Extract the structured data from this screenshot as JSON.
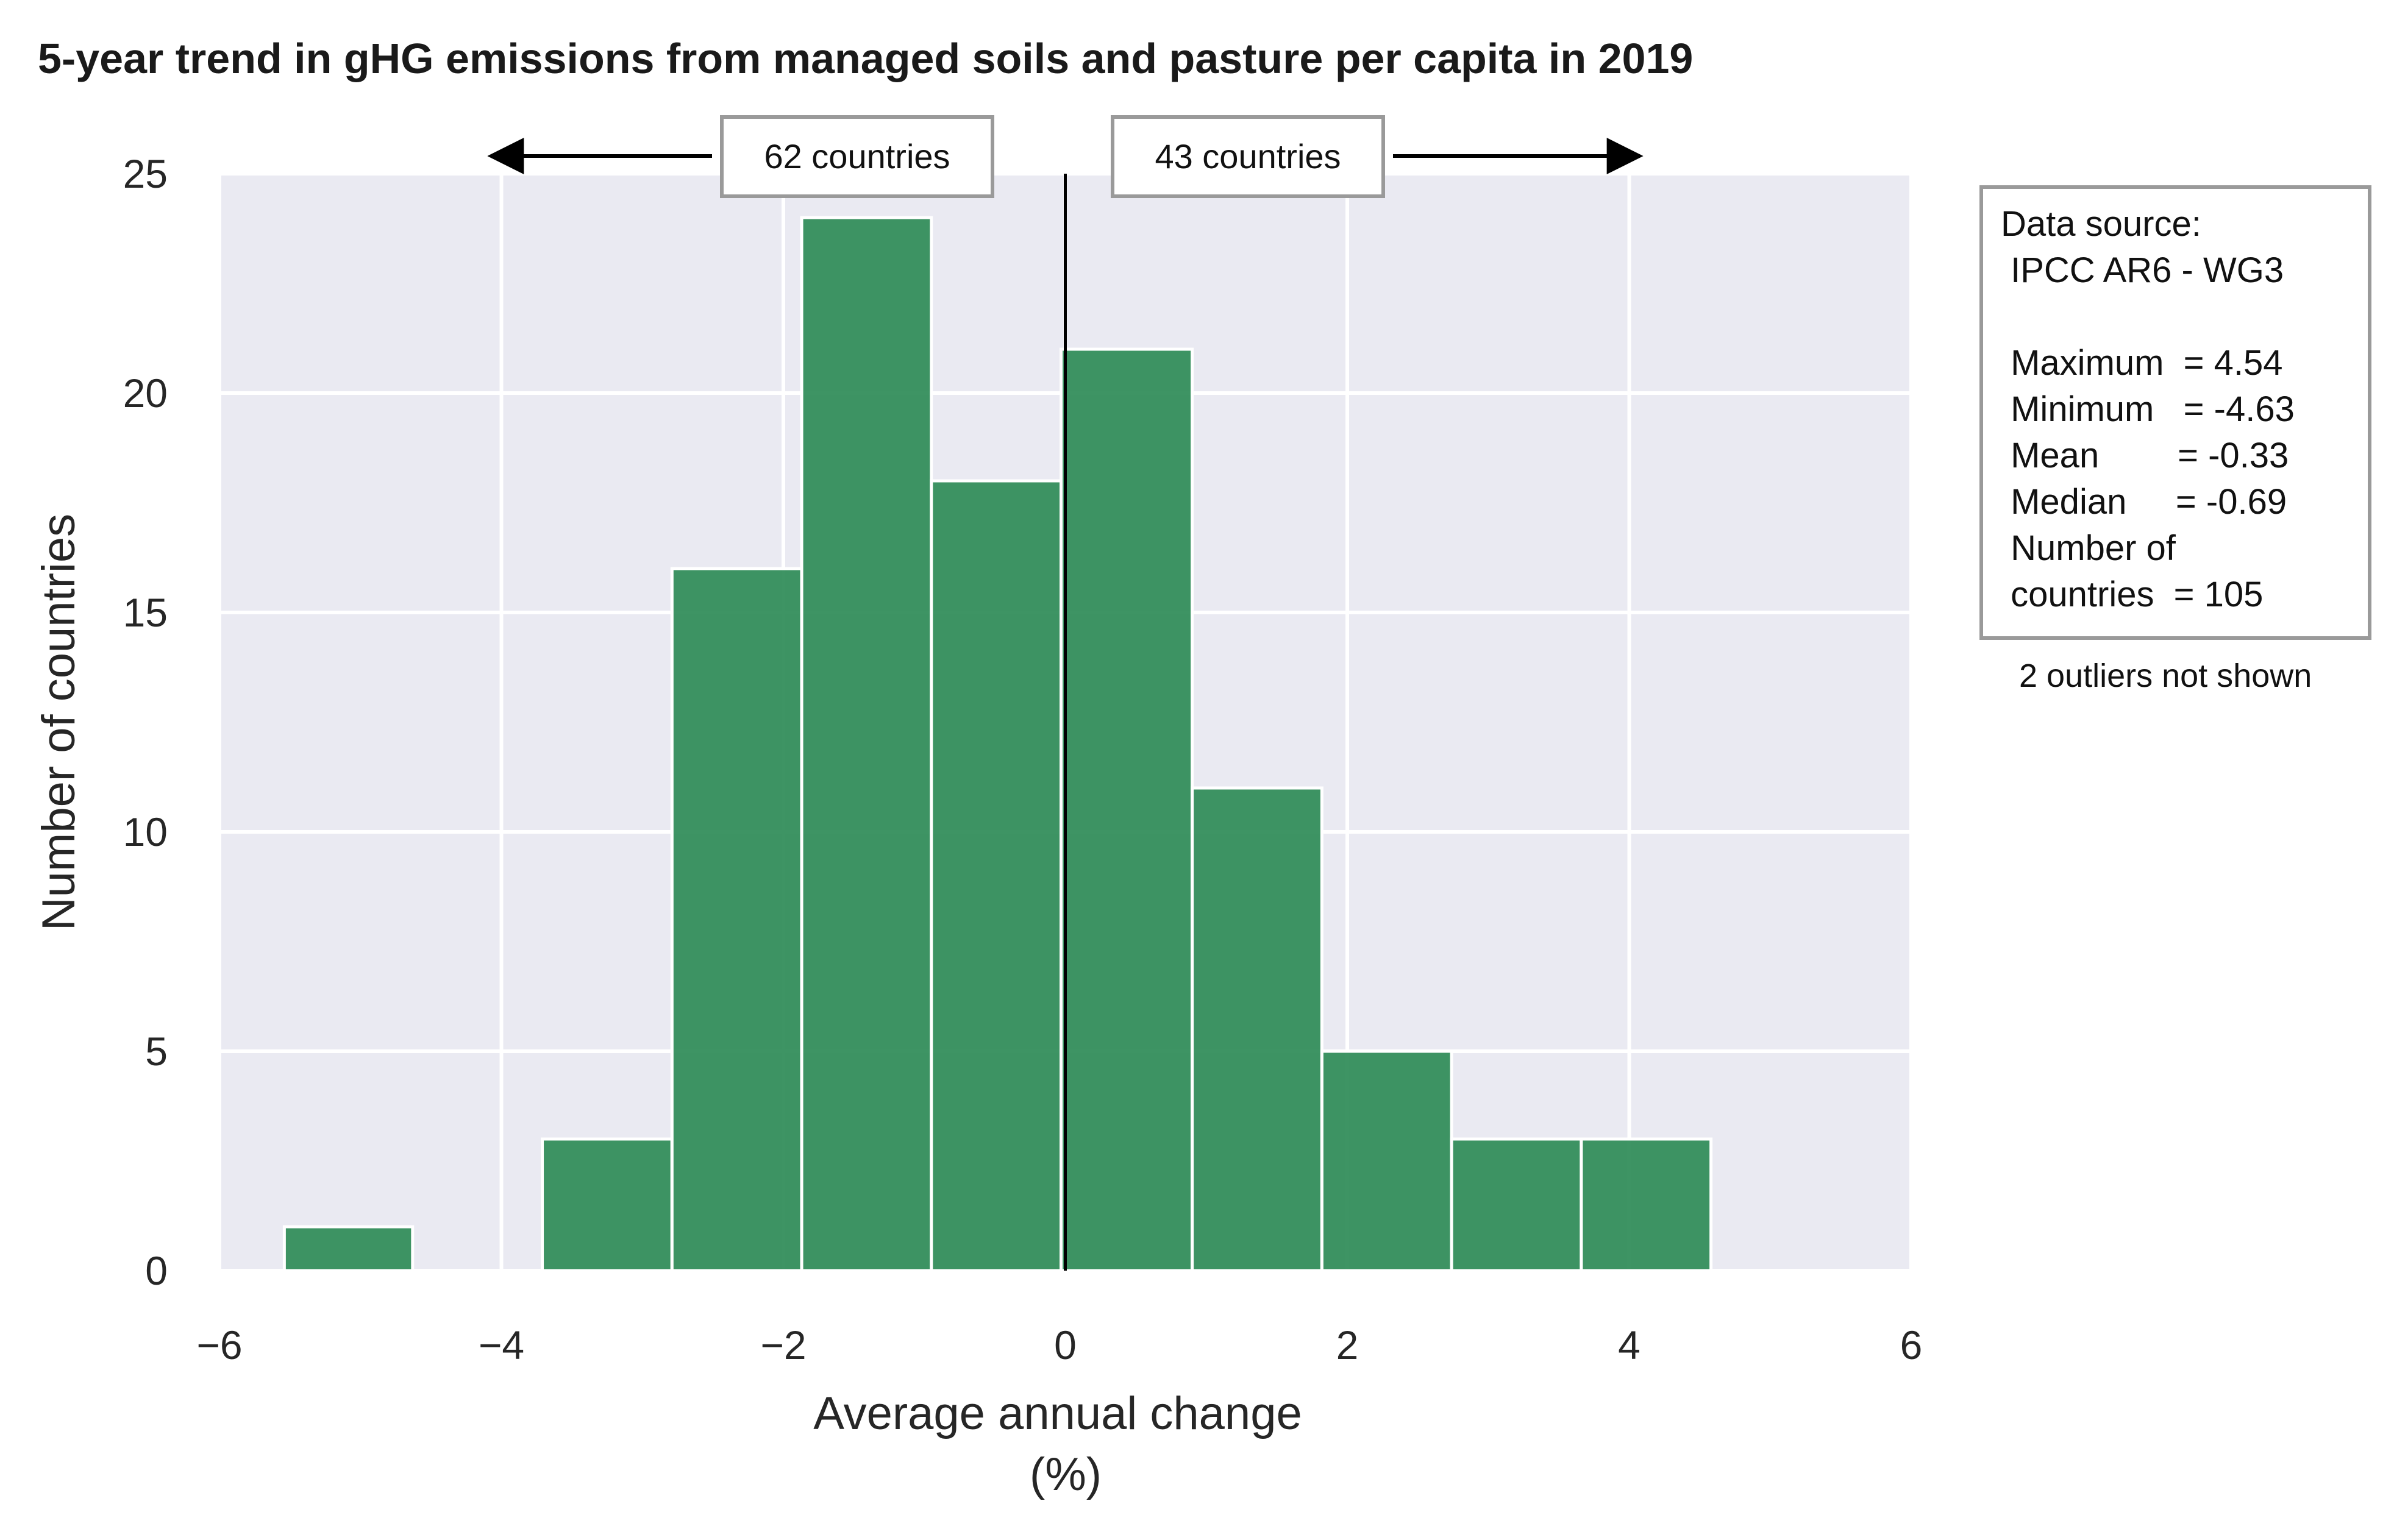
{
  "chart_data": {
    "type": "bar",
    "title": "5-year trend in gHG emissions from managed soils and pasture per capita in 2019",
    "xlabel": "Average annual change",
    "xlabel_unit": "(%)",
    "ylabel": "Number of countries",
    "xlim": [
      -6,
      6
    ],
    "ylim": [
      0,
      25
    ],
    "xticks": [
      "−6",
      "−4",
      "−2",
      "0",
      "2",
      "4",
      "6"
    ],
    "xtick_values": [
      -6,
      -4,
      -2,
      0,
      2,
      4,
      6
    ],
    "yticks": [
      "0",
      "5",
      "10",
      "15",
      "20",
      "25"
    ],
    "ytick_values": [
      0,
      5,
      10,
      15,
      20,
      25
    ],
    "grid": true,
    "bar_color": "#2e8b57",
    "background_color": "#eaeaf2",
    "bins": [
      {
        "x0": -5.54,
        "x1": -4.63,
        "count": 1
      },
      {
        "x0": -4.63,
        "x1": -3.71,
        "count": 0
      },
      {
        "x0": -3.71,
        "x1": -2.79,
        "count": 3
      },
      {
        "x0": -2.79,
        "x1": -1.87,
        "count": 16
      },
      {
        "x0": -1.87,
        "x1": -0.95,
        "count": 24
      },
      {
        "x0": -0.95,
        "x1": -0.03,
        "count": 18
      },
      {
        "x0": -0.03,
        "x1": 0.9,
        "count": 21
      },
      {
        "x0": 0.9,
        "x1": 1.82,
        "count": 11
      },
      {
        "x0": 1.82,
        "x1": 2.74,
        "count": 5
      },
      {
        "x0": 2.74,
        "x1": 3.66,
        "count": 3
      },
      {
        "x0": 3.66,
        "x1": 4.58,
        "count": 3
      }
    ],
    "reference_line_x": 0,
    "annotations": {
      "left": {
        "label": "62 countries",
        "arrow_to_x": -4.1
      },
      "right": {
        "label": "43 countries",
        "arrow_to_x": 4.1
      }
    },
    "stats_box": {
      "lines": [
        "Data source:",
        " IPCC AR6 - WG3",
        "",
        " Maximum  = 4.54",
        " Minimum   = -4.63",
        " Mean        = -0.33",
        " Median     = -0.69",
        " Number of",
        " countries  = 105"
      ]
    },
    "footnote": "2 outliers not shown"
  }
}
